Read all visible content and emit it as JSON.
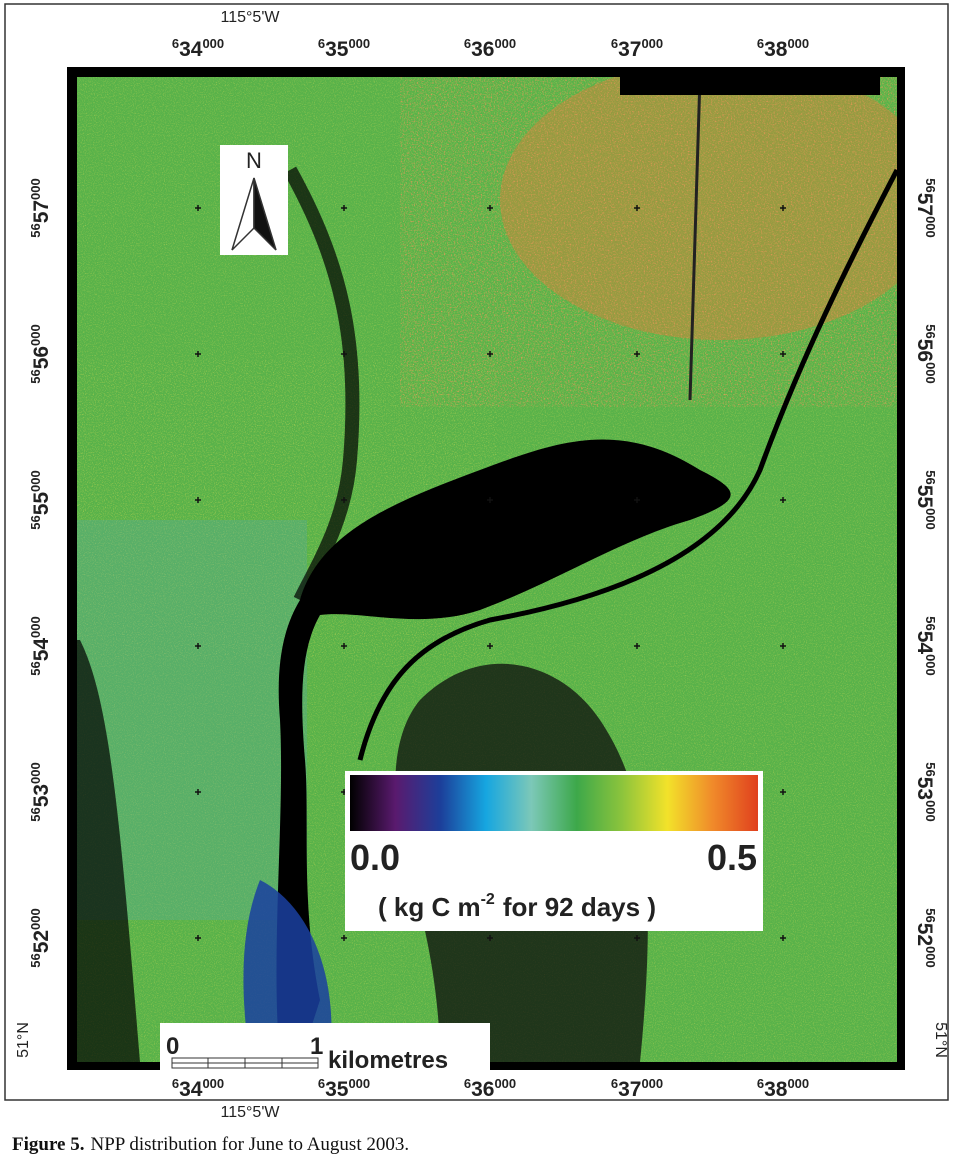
{
  "map": {
    "top_longitude_label": "115°5'W",
    "bottom_longitude_label": "115°5'W",
    "left_latitude_label": "51°N",
    "right_latitude_label": "51°N",
    "x_ticks": [
      {
        "prefix": "6",
        "main": "34",
        "suffix": "000"
      },
      {
        "prefix": "6",
        "main": "35",
        "suffix": "000"
      },
      {
        "prefix": "6",
        "main": "36",
        "suffix": "000"
      },
      {
        "prefix": "6",
        "main": "37",
        "suffix": "000"
      },
      {
        "prefix": "6",
        "main": "38",
        "suffix": "000"
      }
    ],
    "y_ticks": [
      {
        "prefix": "56",
        "main": "57",
        "suffix": "000"
      },
      {
        "prefix": "56",
        "main": "56",
        "suffix": "000"
      },
      {
        "prefix": "56",
        "main": "55",
        "suffix": "000"
      },
      {
        "prefix": "56",
        "main": "54",
        "suffix": "000"
      },
      {
        "prefix": "56",
        "main": "53",
        "suffix": "000"
      },
      {
        "prefix": "56",
        "main": "52",
        "suffix": "000"
      }
    ],
    "north_label": "N",
    "scale_bar": {
      "start": "0",
      "end": "1",
      "unit": "kilometres"
    },
    "colorbar": {
      "min_label": "0.0",
      "max_label": "0.5",
      "unit_prefix": "( kg C m",
      "unit_exponent": "-2",
      "unit_suffix": "for 92 days )",
      "colors": [
        "#000000",
        "#5a1a6e",
        "#1c3f9a",
        "#16a6e0",
        "#7cc8b8",
        "#3da84a",
        "#8cc43c",
        "#f2e22a",
        "#f08a2a",
        "#e0401e"
      ]
    }
  },
  "caption": {
    "label": "Figure 5.",
    "text": "NPP distribution for June to August 2003."
  }
}
